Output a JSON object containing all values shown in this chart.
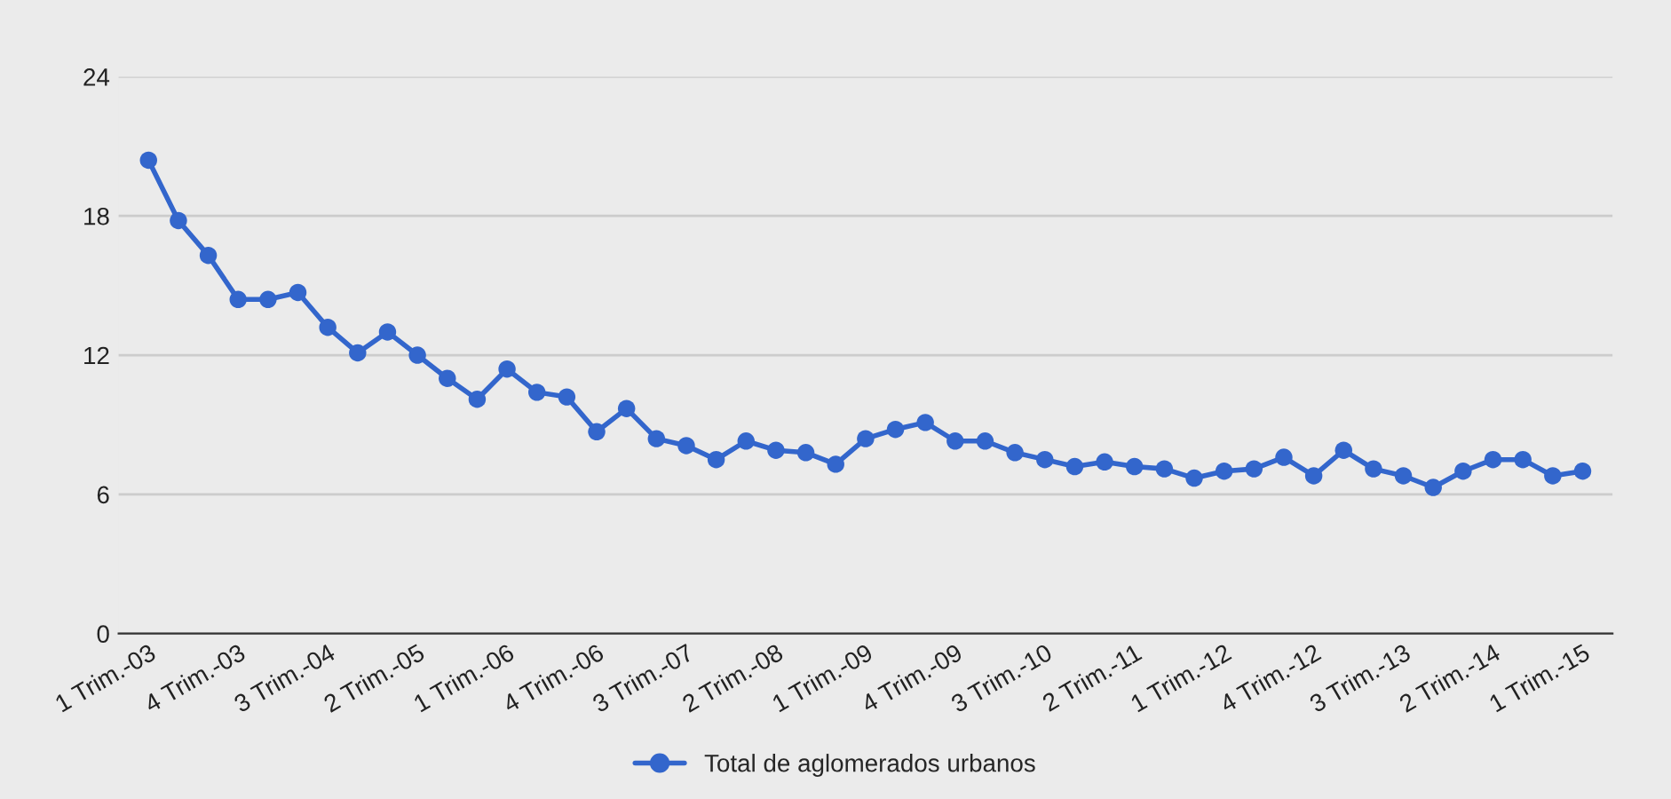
{
  "chart_data": {
    "type": "line",
    "categories": [
      "1 Trim.-03",
      null,
      null,
      "4 Trim.-03",
      null,
      null,
      "3 Trim.-04",
      null,
      null,
      "2 Trim.-05",
      null,
      null,
      "1 Trim.-06",
      null,
      null,
      "4 Trim.-06",
      null,
      null,
      "3 Trim.-07",
      null,
      null,
      "2 Trim.-08",
      null,
      null,
      "1 Trim.-09",
      null,
      null,
      "4 Trim.-09",
      null,
      null,
      "3 Trim.-10",
      null,
      null,
      "2 Trim.-11",
      null,
      null,
      "1 Trim.-12",
      null,
      null,
      "4 Trim.-12",
      null,
      null,
      "3 Trim.-13",
      null,
      null,
      "2 Trim.-14",
      null,
      null,
      "1 Trim.-15"
    ],
    "series": [
      {
        "name": "Total de aglomerados urbanos",
        "color": "#3366cc",
        "values": [
          20.4,
          17.8,
          16.3,
          14.4,
          14.4,
          14.7,
          13.2,
          12.1,
          13.0,
          12.0,
          11.0,
          10.1,
          11.4,
          10.4,
          10.2,
          8.7,
          9.7,
          8.4,
          8.1,
          7.5,
          8.3,
          7.9,
          7.8,
          7.3,
          8.4,
          8.8,
          9.1,
          8.3,
          8.3,
          7.8,
          7.5,
          7.2,
          7.4,
          7.2,
          7.1,
          6.7,
          7.0,
          7.1,
          7.6,
          6.8,
          7.9,
          7.1,
          6.8,
          6.3,
          7.0,
          7.5,
          7.5,
          6.8,
          7.0
        ]
      }
    ],
    "ylim": [
      0,
      24
    ],
    "yticks": [
      0,
      6,
      12,
      18,
      24
    ],
    "grid": "y",
    "legend": "bottom",
    "marker": "circle",
    "line_style": "solid"
  }
}
